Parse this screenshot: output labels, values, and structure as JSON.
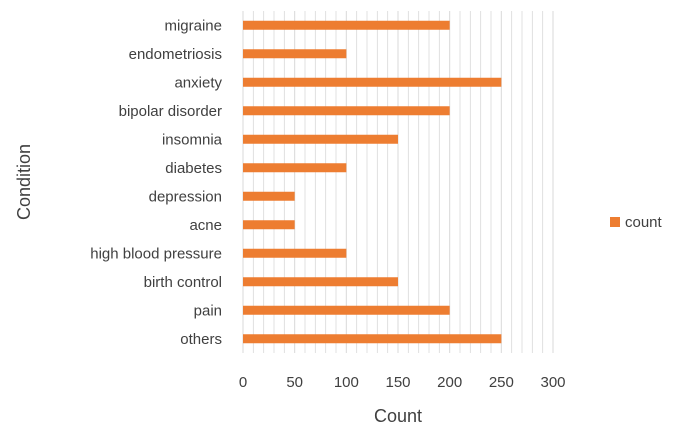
{
  "chart_data": {
    "type": "bar",
    "orientation": "horizontal",
    "categories": [
      "migraine",
      "endometriosis",
      "anxiety",
      "bipolar disorder",
      "insomnia",
      "diabetes",
      "depression",
      "acne",
      "high blood pressure",
      "birth control",
      "pain",
      "others"
    ],
    "series": [
      {
        "name": "count",
        "color": "#ED7D31",
        "values": [
          200,
          100,
          250,
          200,
          150,
          100,
          50,
          50,
          100,
          150,
          200,
          250
        ]
      }
    ],
    "xlabel": "Count",
    "ylabel": "Condition",
    "xlim": [
      0,
      300
    ],
    "xticks": [
      0,
      50,
      100,
      150,
      200,
      250,
      300
    ],
    "xtick_labels": [
      "0",
      "50",
      "100",
      "150",
      "200",
      "250",
      "300"
    ],
    "grid": true,
    "grid_color": "#D9D9D9",
    "minor_grid": true,
    "legend_position": "right"
  }
}
